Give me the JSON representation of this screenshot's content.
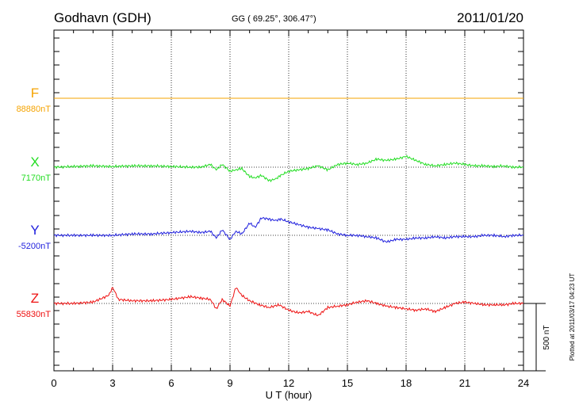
{
  "header": {
    "station": "Godhavn (GDH)",
    "coords": "GG ( 69.25°, 306.47°)",
    "date": "2011/01/20"
  },
  "footer": {
    "plotted_at": "Plotted at 2011/03/17 04:23 UT"
  },
  "chart_data": {
    "type": "line",
    "title": "Godhavn (GDH)",
    "xlabel": "U T (hour)",
    "xlim": [
      0,
      24
    ],
    "xticks": [
      0,
      3,
      6,
      9,
      12,
      15,
      18,
      21,
      24
    ],
    "grid": true,
    "scale_bar": {
      "label": "500 nT",
      "value_nT": 500
    },
    "series": [
      {
        "name": "F",
        "baseline": "88880nT",
        "color": "#f5a300",
        "x": [
          0,
          24
        ],
        "deviation_nT": [
          0,
          0
        ]
      },
      {
        "name": "X",
        "baseline": "7170nT",
        "color": "#22dd22",
        "x": [
          0,
          1,
          2,
          3,
          4,
          5,
          6,
          7,
          7.5,
          8,
          8.3,
          8.6,
          9,
          9.3,
          9.6,
          10,
          10.3,
          10.6,
          11,
          11.3,
          11.6,
          12,
          12.5,
          13,
          13.5,
          14,
          14.5,
          15,
          15.5,
          16,
          16.5,
          17,
          17.5,
          18,
          18.5,
          19,
          19.5,
          20,
          20.5,
          21,
          21.5,
          22,
          22.5,
          23,
          23.5,
          24
        ],
        "deviation_nT": [
          0,
          5,
          10,
          5,
          10,
          10,
          5,
          0,
          0,
          20,
          -20,
          20,
          -30,
          -20,
          -10,
          -70,
          -80,
          -60,
          -100,
          -90,
          -60,
          -30,
          -20,
          -10,
          10,
          -20,
          20,
          30,
          20,
          30,
          60,
          50,
          60,
          80,
          50,
          20,
          10,
          20,
          30,
          20,
          10,
          10,
          5,
          10,
          0,
          0
        ]
      },
      {
        "name": "Y",
        "baseline": "-5200nT",
        "color": "#1f1fdd",
        "x": [
          0,
          1,
          2,
          3,
          4,
          5,
          6,
          7,
          7.5,
          8,
          8.3,
          8.6,
          9,
          9.3,
          9.6,
          10,
          10.3,
          10.6,
          11,
          11.3,
          11.6,
          12,
          12.5,
          13,
          13.5,
          14,
          14.5,
          15,
          15.5,
          16,
          16.5,
          17,
          17.5,
          18,
          18.5,
          19,
          19.5,
          20,
          20.5,
          21,
          21.5,
          22,
          22.5,
          23,
          23.5,
          24
        ],
        "deviation_nT": [
          0,
          0,
          0,
          0,
          10,
          10,
          20,
          30,
          20,
          30,
          -20,
          40,
          -30,
          30,
          10,
          90,
          60,
          130,
          120,
          110,
          120,
          100,
          80,
          60,
          50,
          40,
          10,
          0,
          0,
          -10,
          -20,
          -50,
          -30,
          -30,
          -20,
          -20,
          -10,
          -20,
          -10,
          -10,
          -10,
          0,
          0,
          -10,
          0,
          0
        ]
      },
      {
        "name": "Z",
        "baseline": "55830nT",
        "color": "#ee1111",
        "x": [
          0,
          1,
          2,
          2.8,
          3,
          3.3,
          4,
          5,
          6,
          6.5,
          7,
          7.5,
          8,
          8.3,
          8.6,
          9,
          9.3,
          9.6,
          10,
          10.5,
          11,
          11.5,
          12,
          12.5,
          13,
          13.5,
          14,
          14.5,
          15,
          15.5,
          16,
          16.5,
          17,
          17.5,
          18,
          18.5,
          19,
          19.5,
          20,
          20.5,
          21,
          21.5,
          22,
          22.5,
          23,
          23.5,
          24
        ],
        "deviation_nT": [
          0,
          0,
          10,
          60,
          120,
          30,
          20,
          20,
          30,
          40,
          50,
          40,
          30,
          -40,
          30,
          -20,
          120,
          60,
          20,
          -10,
          -30,
          -10,
          -50,
          -70,
          -60,
          -90,
          -30,
          -20,
          -10,
          10,
          20,
          0,
          -20,
          -30,
          -40,
          -50,
          -40,
          -60,
          -30,
          0,
          10,
          0,
          -10,
          -10,
          -10,
          0,
          0
        ]
      }
    ]
  }
}
